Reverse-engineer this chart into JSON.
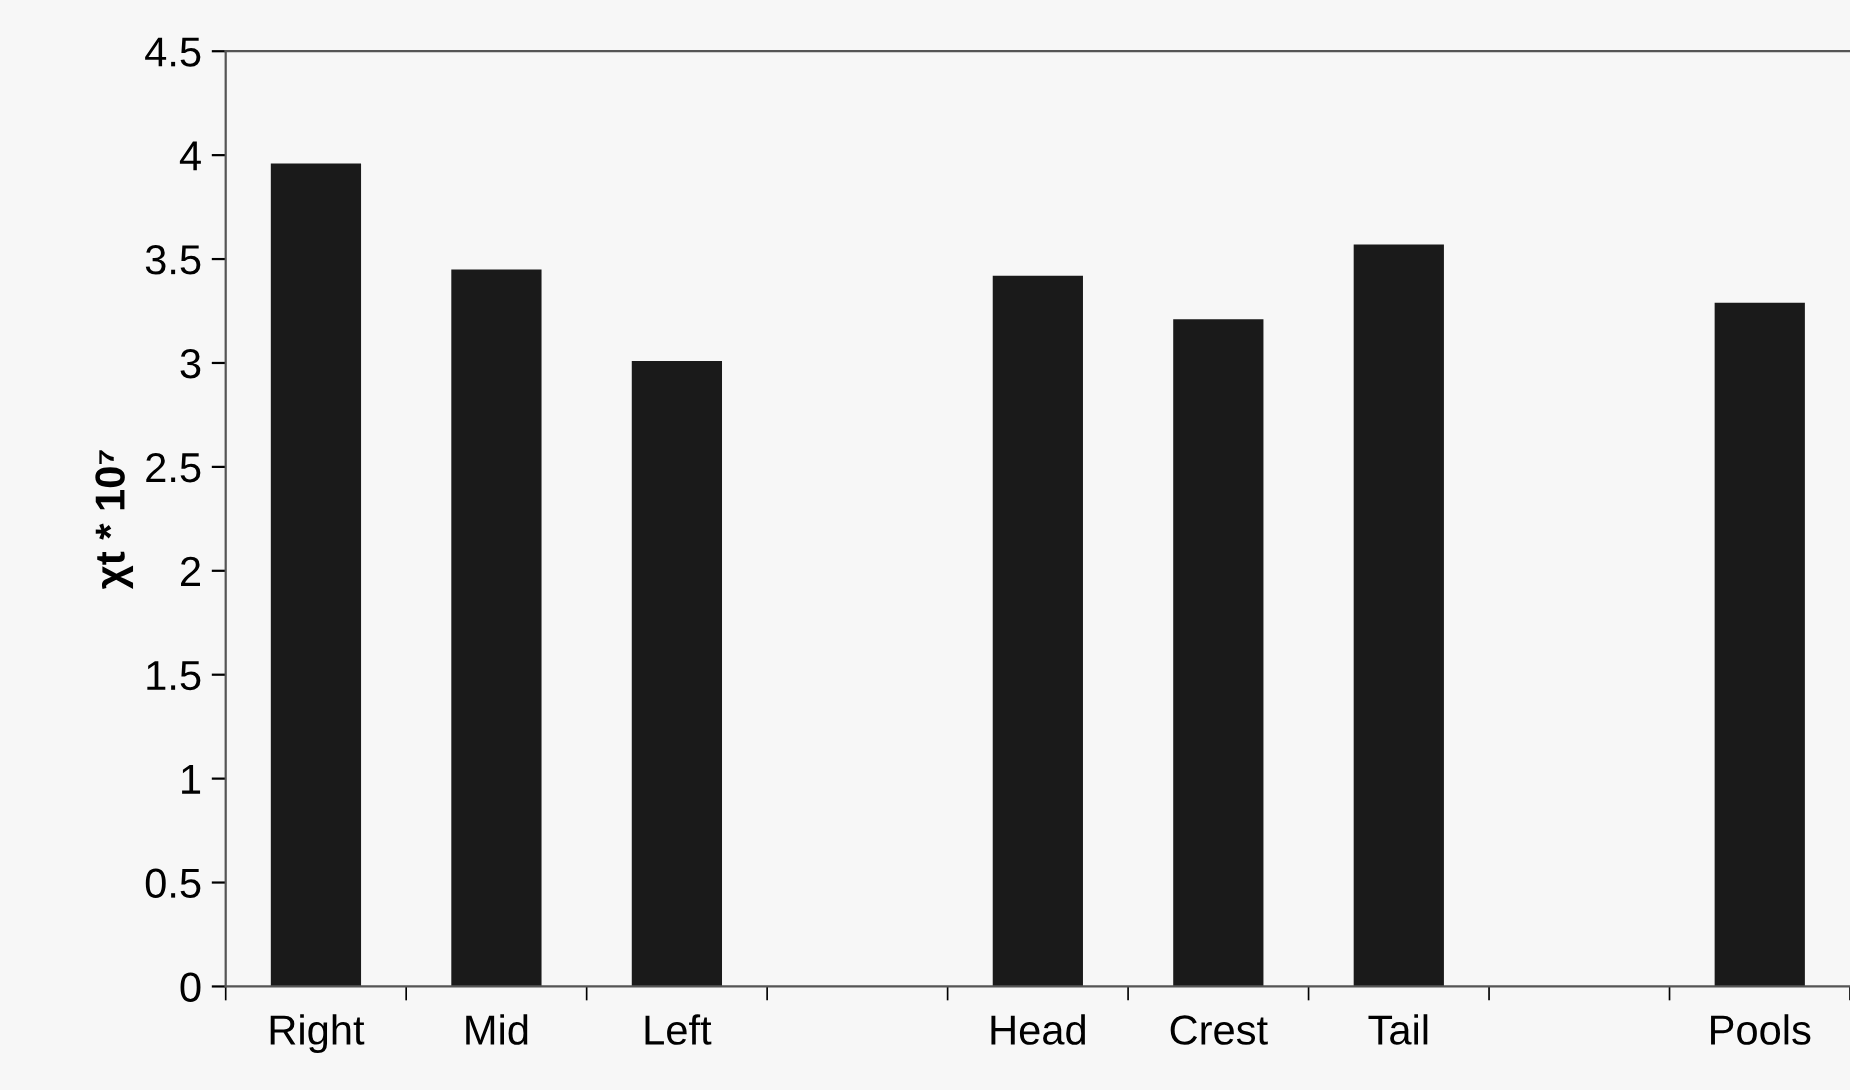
{
  "chart_data": {
    "type": "bar",
    "ylabel": "χt * 10⁷",
    "categories": [
      "Right",
      "Mid",
      "Left",
      null,
      "Head",
      "Crest",
      "Tail",
      null,
      "Pools"
    ],
    "values": [
      3.96,
      3.45,
      3.01,
      null,
      3.42,
      3.21,
      3.57,
      null,
      3.29
    ],
    "color": "#1a1a1a",
    "ylim": [
      0,
      4.5
    ],
    "yticks": [
      0,
      0.5,
      1,
      1.5,
      2,
      2.5,
      3,
      3.5,
      4,
      4.5
    ],
    "grid": false,
    "legend": false
  }
}
